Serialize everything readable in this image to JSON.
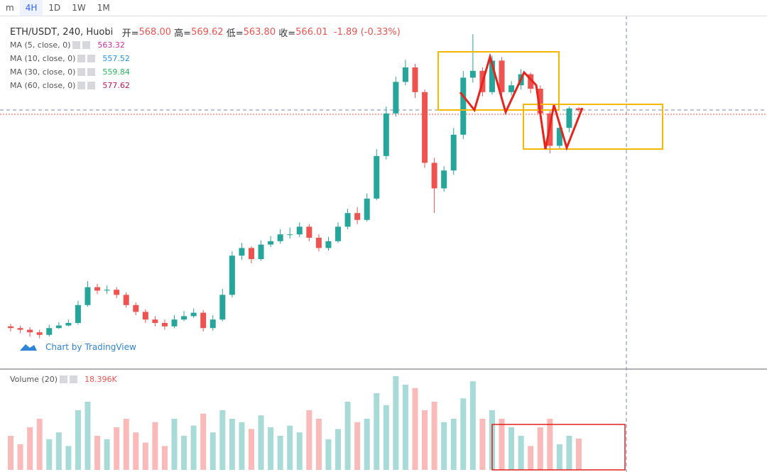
{
  "toolbar": {
    "items": [
      "m",
      "4H",
      "1D",
      "1W",
      "1M"
    ]
  },
  "legend": {
    "symbol": "ETH/USDT, 240, Huobi",
    "open_label": "开=",
    "open": "568.00",
    "high_label": "高=",
    "high": "569.62",
    "low_label": "低=",
    "low": "563.80",
    "close_label": "收=",
    "close": "566.01",
    "change": "-1.89 (-0.33%)"
  },
  "indicators": [
    {
      "name": "MA (5, close, 0)",
      "value": "563.32",
      "color": "#d12fa6"
    },
    {
      "name": "MA (10, close, 0)",
      "value": "557.52",
      "color": "#2196f3"
    },
    {
      "name": "MA (30, close, 0)",
      "value": "559.84",
      "color": "#26b55a"
    },
    {
      "name": "MA (60, close, 0)",
      "value": "577.62",
      "color": "#c2185b"
    }
  ],
  "watermark": "Chart by TradingView",
  "volume_legend": {
    "name": "Volume (20)",
    "value": "18.396K"
  },
  "chart_data": {
    "type": "candlestick",
    "up_color": "#26a69a",
    "down_color": "#ef5350",
    "open": [
      312,
      310,
      308,
      305,
      302,
      310,
      313,
      316,
      337,
      358,
      354,
      355,
      349,
      337,
      329,
      320,
      316,
      312,
      320,
      324,
      328,
      310,
      320,
      349,
      395,
      404,
      391,
      408,
      412,
      420,
      420,
      429,
      416,
      404,
      412,
      429,
      445,
      437,
      462,
      512,
      562,
      599,
      616,
      587,
      504,
      474,
      495,
      537,
      604,
      612,
      587,
      624,
      587,
      595,
      608,
      591,
      562,
      524,
      545,
      568
    ],
    "high": [
      315,
      313,
      311,
      308,
      314,
      317,
      320,
      342,
      365,
      362,
      360,
      358,
      352,
      340,
      332,
      324,
      320,
      325,
      330,
      333,
      331,
      325,
      356,
      400,
      410,
      406,
      413,
      418,
      426,
      428,
      434,
      432,
      420,
      417,
      434,
      450,
      452,
      468,
      520,
      570,
      605,
      625,
      620,
      590,
      510,
      500,
      545,
      612,
      655,
      616,
      630,
      628,
      600,
      614,
      610,
      595,
      565,
      550,
      570,
      569.62
    ],
    "low": [
      306,
      304,
      300,
      298,
      300,
      309,
      312,
      314,
      335,
      350,
      350,
      345,
      334,
      325,
      316,
      312,
      308,
      310,
      318,
      322,
      306,
      307,
      318,
      346,
      390,
      386,
      389,
      405,
      409,
      415,
      417,
      412,
      400,
      401,
      410,
      426,
      432,
      435,
      460,
      508,
      558,
      595,
      580,
      498,
      445,
      470,
      490,
      532,
      598,
      582,
      584,
      582,
      583,
      590,
      586,
      555,
      515,
      520,
      540,
      563.8
    ],
    "close": [
      310,
      308,
      305,
      302,
      310,
      313,
      316,
      337,
      358,
      354,
      355,
      349,
      337,
      329,
      320,
      316,
      312,
      320,
      324,
      328,
      310,
      320,
      349,
      395,
      404,
      391,
      408,
      412,
      420,
      420,
      429,
      416,
      404,
      412,
      429,
      445,
      437,
      462,
      512,
      562,
      599,
      616,
      587,
      504,
      474,
      495,
      537,
      604,
      612,
      587,
      624,
      587,
      595,
      608,
      591,
      562,
      524,
      545,
      567.9,
      566.01
    ],
    "volume": [
      20,
      15,
      25,
      30,
      18,
      22,
      14,
      35,
      40,
      20,
      18,
      25,
      30,
      22,
      16,
      28,
      14,
      30,
      20,
      26,
      33,
      22,
      35,
      30,
      28,
      24,
      32,
      25,
      20,
      26,
      22,
      35,
      30,
      18,
      24,
      40,
      28,
      30,
      45,
      38,
      55,
      50,
      48,
      35,
      40,
      28,
      30,
      42,
      52,
      30,
      35,
      30,
      25,
      20,
      14,
      25,
      30,
      15,
      20,
      18.396
    ]
  }
}
